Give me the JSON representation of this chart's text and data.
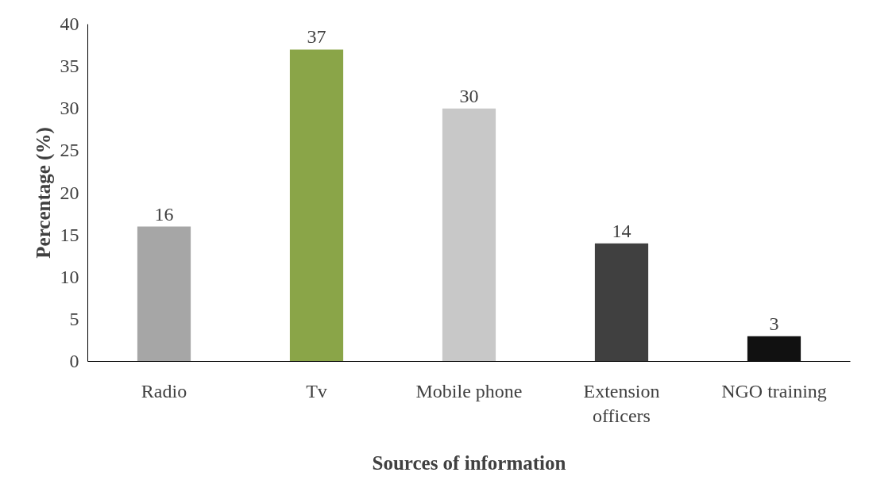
{
  "chart_data": {
    "type": "bar",
    "categories": [
      "Radio",
      "Tv",
      "Mobile phone",
      "Extension officers",
      "NGO training"
    ],
    "values": [
      16,
      37,
      30,
      14,
      3
    ],
    "colors": [
      "#a6a6a6",
      "#8aa548",
      "#c8c8c8",
      "#404040",
      "#111111"
    ],
    "xlabel": "Sources of information",
    "ylabel": "Percentage (%)",
    "ylim": [
      0,
      40
    ],
    "yticks": [
      0,
      5,
      10,
      15,
      20,
      25,
      30,
      35,
      40
    ],
    "grid": false,
    "data_labels": true
  }
}
